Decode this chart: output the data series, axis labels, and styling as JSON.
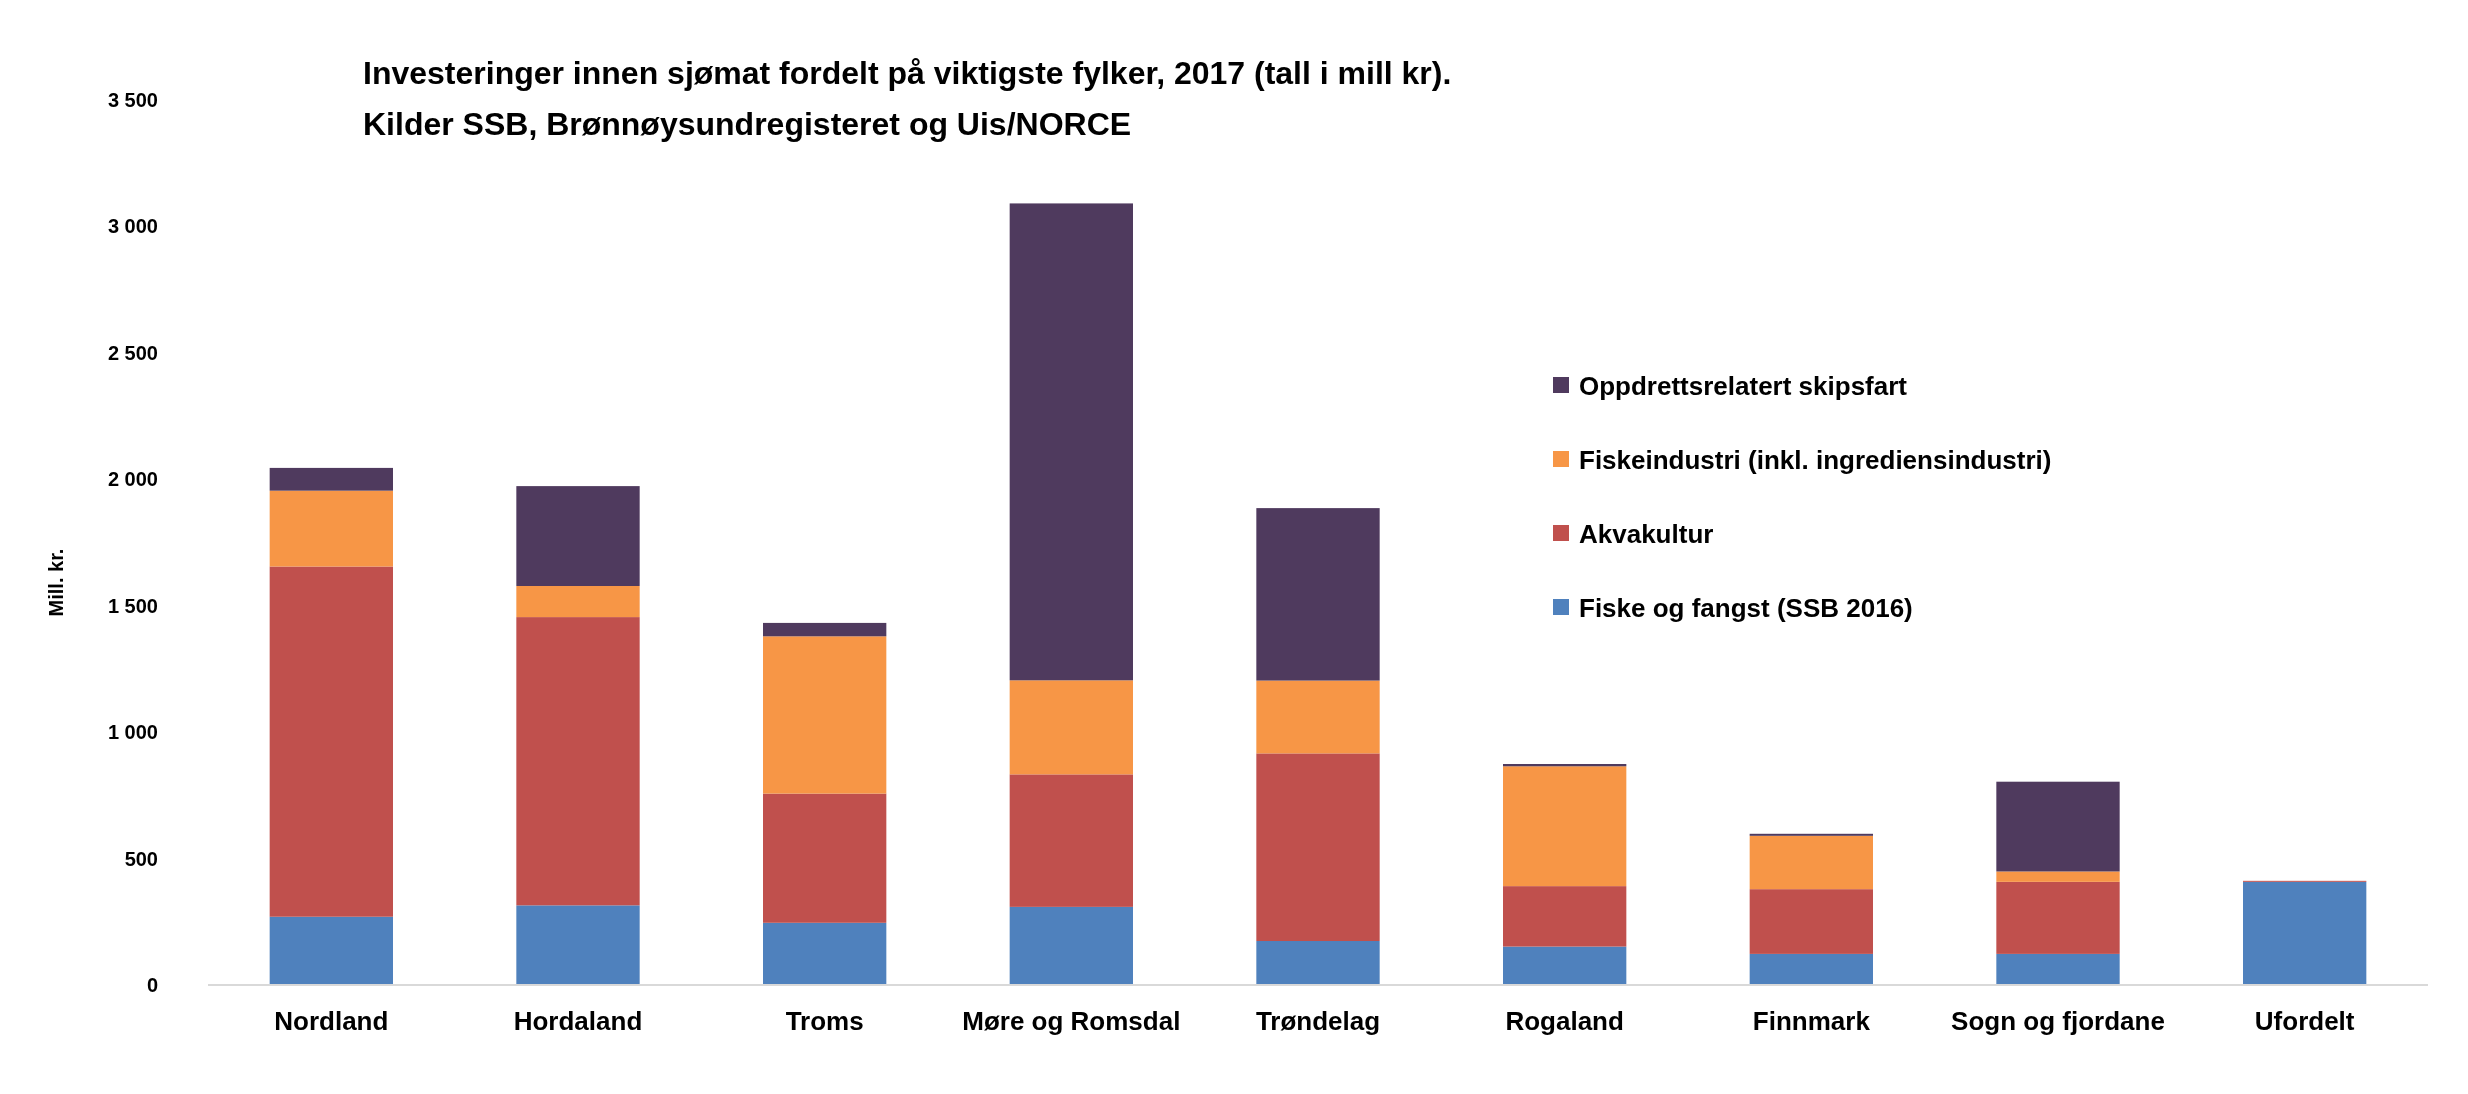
{
  "chart_data": {
    "type": "bar",
    "stacked": true,
    "title": "Investeringer innen sjømat fordelt på viktigste fylker, 2017 (tall i mill kr).",
    "subtitle": "Kilder SSB, Brønnøysundregisteret og Uis/NORCE",
    "ylabel": "Mill. kr.",
    "categories": [
      "Nordland",
      "Hordaland",
      "Troms",
      "Møre og Romsdal",
      "Trøndelag",
      "Rogaland",
      "Finnmark",
      "Sogn og fjordane",
      "Ufordelt"
    ],
    "series": [
      {
        "name": "Fiske og fangst (SSB 2016)",
        "color": "#4f81bd",
        "values": [
          270,
          315,
          246,
          309,
          174,
          152,
          123,
          123,
          408
        ]
      },
      {
        "name": "Akvakultur",
        "color": "#c0504d",
        "values": [
          1385,
          1140,
          511,
          524,
          742,
          239,
          256,
          285,
          4
        ]
      },
      {
        "name": "Fiskeindustri (inkl. ingrediensindustri)",
        "color": "#f79646",
        "values": [
          300,
          123,
          622,
          372,
          288,
          474,
          211,
          41,
          0
        ]
      },
      {
        "name": "Oppdrettsrelatert skipsfart",
        "color": "#4f3a5e",
        "values": [
          90,
          395,
          53,
          1886,
          682,
          9,
          8,
          355,
          0
        ]
      }
    ],
    "ylim": [
      0,
      3500
    ],
    "yticks": [
      0,
      500,
      {
        "value": 1000,
        "label": "1 000"
      },
      {
        "value": 1500,
        "label": "1 500"
      },
      {
        "value": 2000,
        "label": "2 000"
      },
      {
        "value": 2500,
        "label": "2 500"
      },
      {
        "value": 3000,
        "label": "3 000"
      },
      {
        "value": 3500,
        "label": "3 500"
      }
    ],
    "grid": false,
    "legend": "right"
  }
}
